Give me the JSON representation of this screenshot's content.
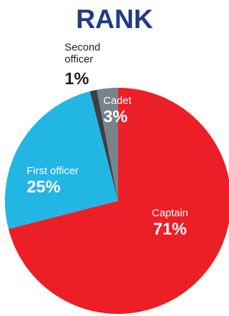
{
  "chart_data": {
    "type": "pie",
    "title": "RANK",
    "slices": [
      {
        "name": "Captain",
        "value": 71,
        "label": "71%",
        "color": "#ec1f26"
      },
      {
        "name": "First officer",
        "value": 25,
        "label": "25%",
        "color": "#22b6e5"
      },
      {
        "name": "Second officer",
        "value": 1,
        "label": "1%",
        "color": "#3b4046"
      },
      {
        "name": "Cadet",
        "value": 3,
        "label": "3%",
        "color": "#78838c"
      }
    ],
    "start": "12 o'clock",
    "direction": "clockwise",
    "legend": "none"
  }
}
